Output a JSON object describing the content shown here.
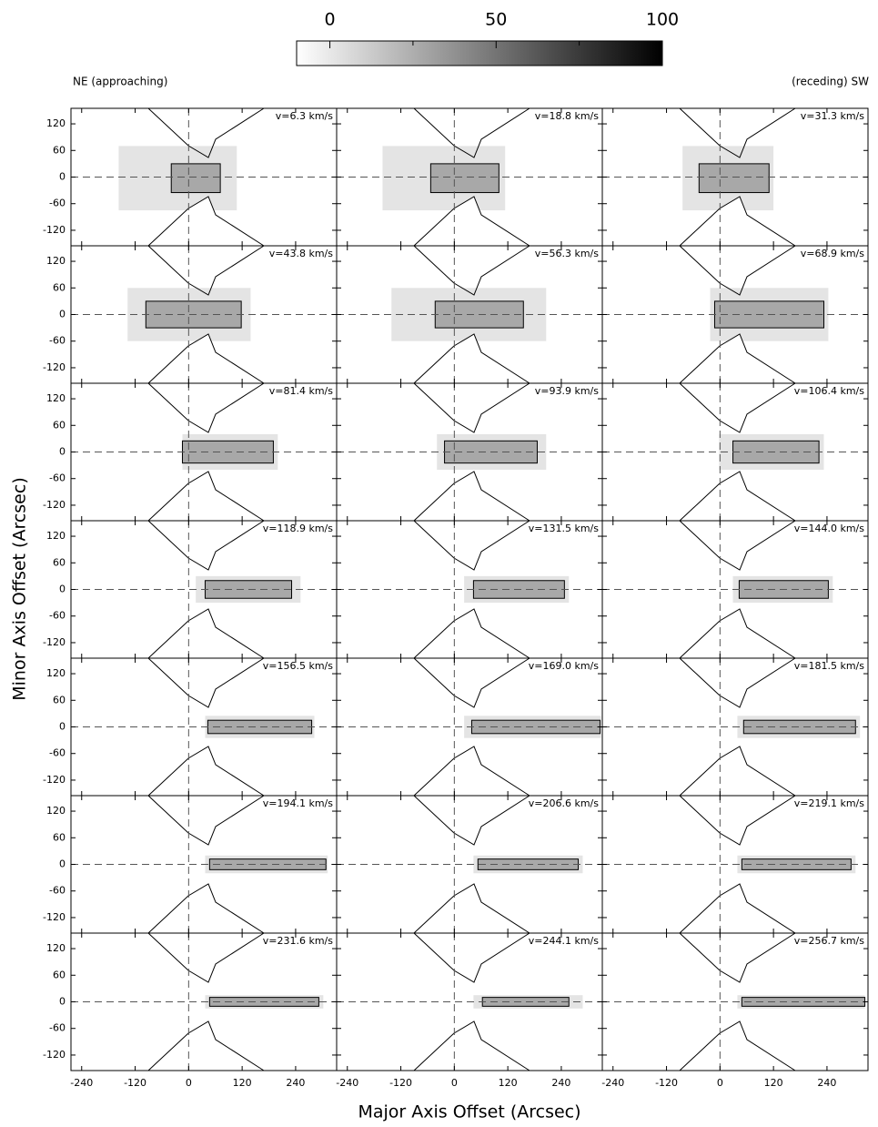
{
  "chart_data": {
    "type": "channel-maps",
    "xlabel": "Major Axis Offset (Arcsec)",
    "ylabel": "Minor Axis Offset (Arcsec)",
    "left_note": "NE (approaching)",
    "right_note": "(receding) SW",
    "xlim": [
      -264,
      332
    ],
    "ylim": [
      -155,
      155
    ],
    "xticks": [
      -240,
      -120,
      0,
      120,
      240
    ],
    "yticks": [
      -120,
      -60,
      0,
      60,
      120
    ],
    "colorbar": {
      "clim": [
        -10,
        100
      ],
      "ticks": [
        0,
        50,
        100
      ],
      "minor_ticks": [
        25,
        75
      ],
      "cmap": [
        "#ffffff",
        "#000000"
      ]
    },
    "panels": [
      {
        "label": "v=6.3 km/s",
        "emission": {
          "x": [
            -157,
            108
          ],
          "y": [
            -75,
            70
          ]
        },
        "contour": {
          "x": [
            -39,
            71
          ],
          "y": [
            -35,
            30
          ]
        }
      },
      {
        "label": "v=18.8 km/s",
        "emission": {
          "x": [
            -161,
            114
          ],
          "y": [
            -75,
            70
          ]
        },
        "contour": {
          "x": [
            -53,
            100
          ],
          "y": [
            -35,
            30
          ]
        }
      },
      {
        "label": "v=31.3 km/s",
        "emission": {
          "x": [
            -84,
            120
          ],
          "y": [
            -75,
            70
          ]
        },
        "contour": {
          "x": [
            -47,
            110
          ],
          "y": [
            -35,
            30
          ]
        }
      },
      {
        "label": "v=43.8 km/s",
        "emission": {
          "x": [
            -137,
            139
          ],
          "y": [
            -60,
            60
          ]
        },
        "contour": {
          "x": [
            -96,
            118
          ],
          "y": [
            -30,
            30
          ]
        }
      },
      {
        "label": "v=56.3 km/s",
        "emission": {
          "x": [
            -141,
            206
          ],
          "y": [
            -60,
            60
          ]
        },
        "contour": {
          "x": [
            -43,
            155
          ],
          "y": [
            -30,
            30
          ]
        }
      },
      {
        "label": "v=68.9 km/s",
        "emission": {
          "x": [
            -22,
            243
          ],
          "y": [
            -60,
            60
          ]
        },
        "contour": {
          "x": [
            -12,
            233
          ],
          "y": [
            -30,
            30
          ]
        }
      },
      {
        "label": "v=81.4 km/s",
        "emission": {
          "x": [
            -14,
            200
          ],
          "y": [
            -40,
            40
          ]
        },
        "contour": {
          "x": [
            -14,
            190
          ],
          "y": [
            -25,
            25
          ]
        }
      },
      {
        "label": "v=93.9 km/s",
        "emission": {
          "x": [
            -39,
            206
          ],
          "y": [
            -40,
            40
          ]
        },
        "contour": {
          "x": [
            -22,
            186
          ],
          "y": [
            -25,
            25
          ]
        }
      },
      {
        "label": "v=106.4 km/s",
        "emission": {
          "x": [
            -2,
            233
          ],
          "y": [
            -40,
            40
          ]
        },
        "contour": {
          "x": [
            29,
            222
          ],
          "y": [
            -25,
            25
          ]
        }
      },
      {
        "label": "v=118.9 km/s",
        "emission": {
          "x": [
            16,
            251
          ],
          "y": [
            -30,
            30
          ]
        },
        "contour": {
          "x": [
            37,
            231
          ],
          "y": [
            -20,
            20
          ]
        }
      },
      {
        "label": "v=131.5 km/s",
        "emission": {
          "x": [
            22,
            257
          ],
          "y": [
            -30,
            30
          ]
        },
        "contour": {
          "x": [
            43,
            247
          ],
          "y": [
            -20,
            20
          ]
        }
      },
      {
        "label": "v=144.0 km/s",
        "emission": {
          "x": [
            29,
            253
          ],
          "y": [
            -30,
            30
          ]
        },
        "contour": {
          "x": [
            43,
            243
          ],
          "y": [
            -20,
            20
          ]
        }
      },
      {
        "label": "v=156.5 km/s",
        "emission": {
          "x": [
            37,
            282
          ],
          "y": [
            -25,
            25
          ]
        },
        "contour": {
          "x": [
            43,
            276
          ],
          "y": [
            -15,
            15
          ]
        }
      },
      {
        "label": "v=169.0 km/s",
        "emission": {
          "x": [
            22,
            329
          ],
          "y": [
            -25,
            25
          ]
        },
        "contour": {
          "x": [
            39,
            327
          ],
          "y": [
            -15,
            15
          ]
        }
      },
      {
        "label": "v=181.5 km/s",
        "emission": {
          "x": [
            39,
            314
          ],
          "y": [
            -25,
            25
          ]
        },
        "contour": {
          "x": [
            53,
            304
          ],
          "y": [
            -15,
            15
          ]
        }
      },
      {
        "label": "v=194.1 km/s",
        "emission": {
          "x": [
            37,
            312
          ],
          "y": [
            -20,
            20
          ]
        },
        "contour": {
          "x": [
            47,
            308
          ],
          "y": [
            -12,
            12
          ]
        }
      },
      {
        "label": "v=206.6 km/s",
        "emission": {
          "x": [
            43,
            288
          ],
          "y": [
            -20,
            20
          ]
        },
        "contour": {
          "x": [
            53,
            278
          ],
          "y": [
            -12,
            12
          ]
        }
      },
      {
        "label": "v=219.1 km/s",
        "emission": {
          "x": [
            39,
            304
          ],
          "y": [
            -20,
            20
          ]
        },
        "contour": {
          "x": [
            49,
            294
          ],
          "y": [
            -12,
            12
          ]
        }
      },
      {
        "label": "v=231.6 km/s",
        "emission": {
          "x": [
            37,
            302
          ],
          "y": [
            -15,
            15
          ]
        },
        "contour": {
          "x": [
            47,
            292
          ],
          "y": [
            -10,
            10
          ]
        }
      },
      {
        "label": "v=244.1 km/s",
        "emission": {
          "x": [
            43,
            288
          ],
          "y": [
            -15,
            15
          ]
        },
        "contour": {
          "x": [
            63,
            257
          ],
          "y": [
            -10,
            10
          ]
        }
      },
      {
        "label": "v=256.7 km/s",
        "emission": {
          "x": [
            39,
            325
          ],
          "y": [
            -15,
            15
          ]
        },
        "contour": {
          "x": [
            49,
            325
          ],
          "y": [
            -10,
            10
          ]
        }
      }
    ]
  }
}
